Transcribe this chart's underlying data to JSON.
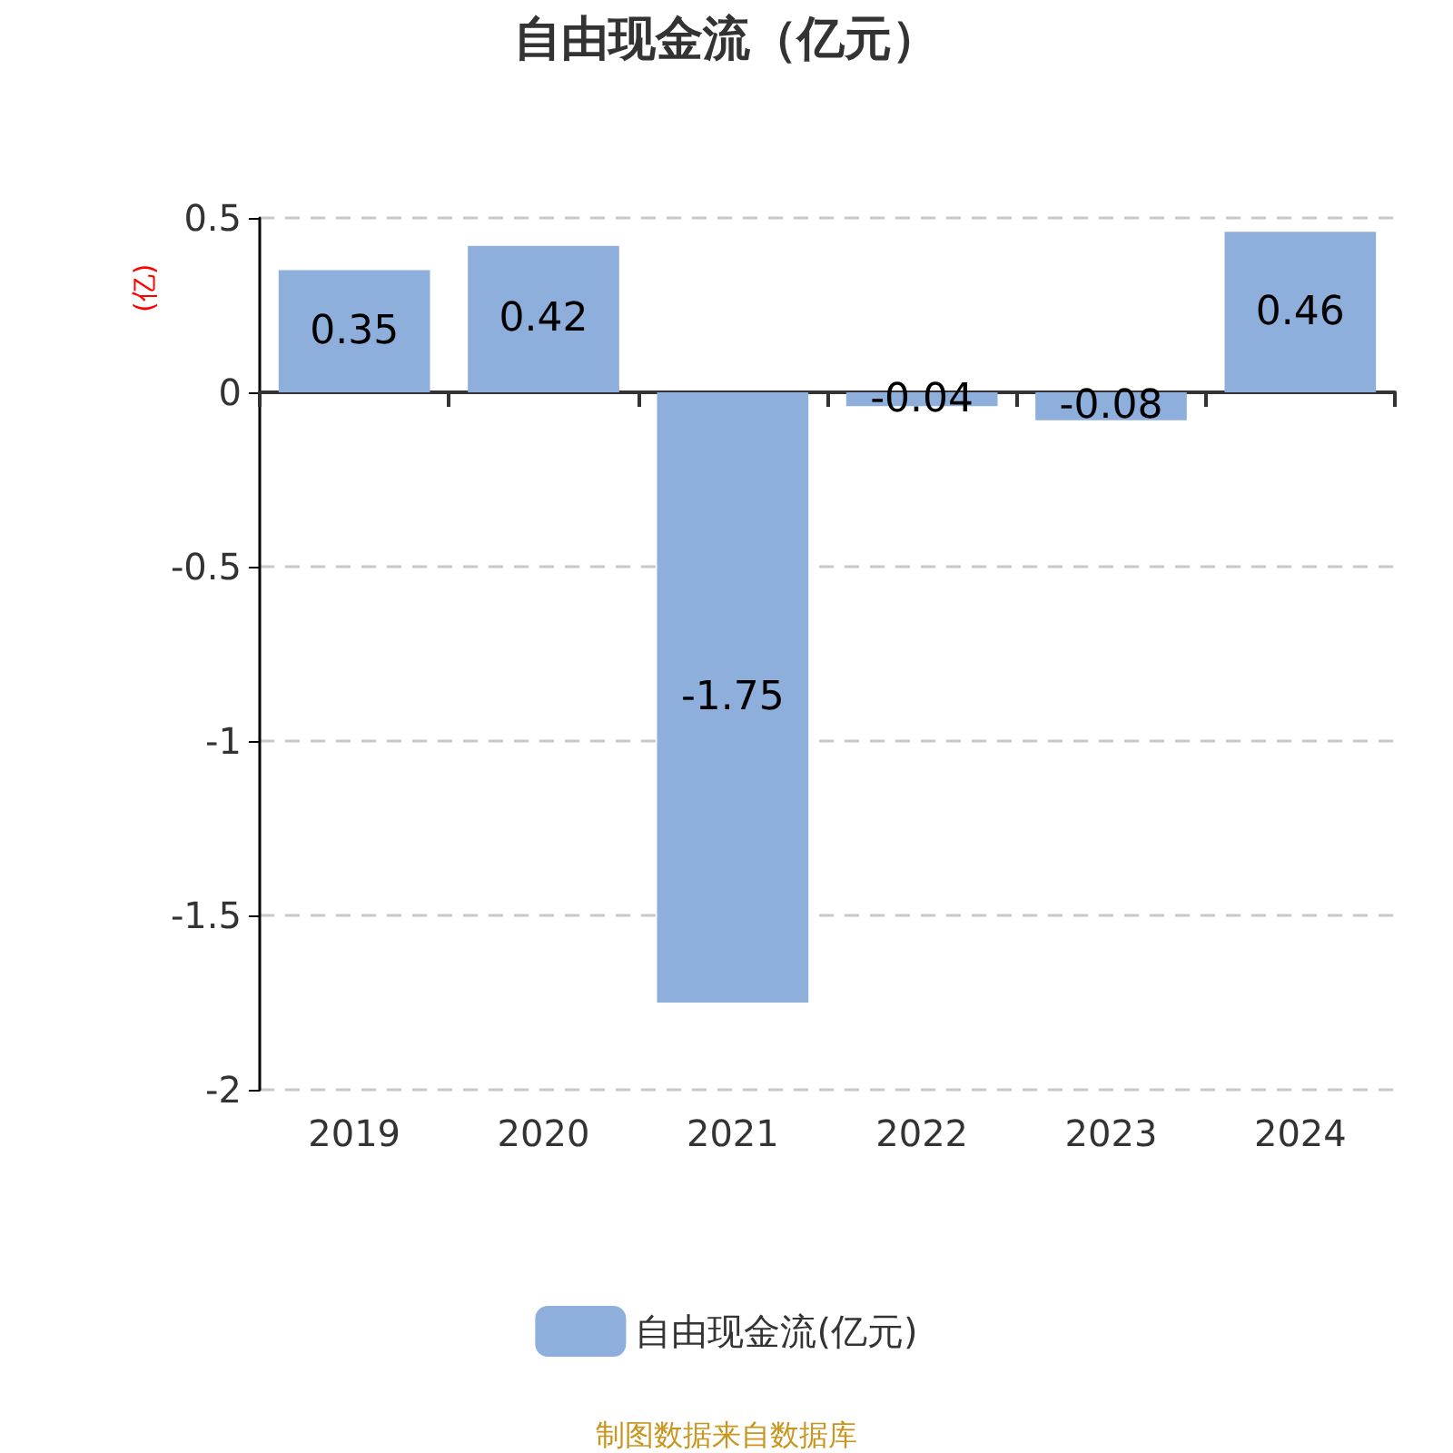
{
  "chart_data": {
    "type": "bar",
    "title": "自由现金流（亿元）",
    "ylabel": "(亿)",
    "categories": [
      "2019",
      "2020",
      "2021",
      "2022",
      "2023",
      "2024"
    ],
    "series": [
      {
        "name": "自由现金流(亿元)",
        "color": "#8eaedb",
        "values": [
          0.35,
          0.42,
          -1.75,
          -0.04,
          -0.08,
          0.46
        ]
      }
    ],
    "ylim": [
      -2,
      0.5
    ],
    "yticks": [
      -2,
      -1.5,
      -1,
      -0.5,
      0,
      0.5
    ],
    "grid": "y",
    "legend": "bottom",
    "data_labels": true,
    "annotations": [
      "制图数据来自数据库"
    ]
  }
}
